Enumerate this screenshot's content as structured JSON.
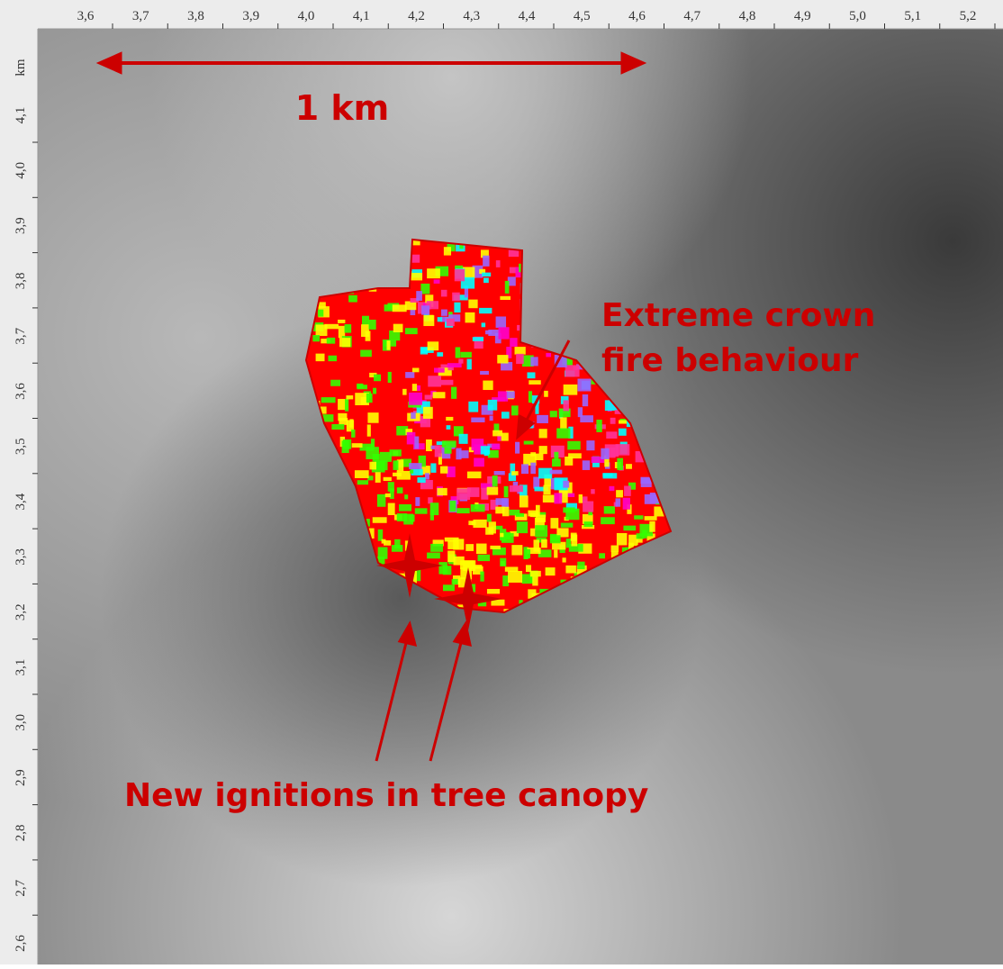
{
  "rulers": {
    "top": [
      "3,6",
      "3,7",
      "3,8",
      "3,9",
      "4,0",
      "4,1",
      "4,2",
      "4,3",
      "4,4",
      "4,5",
      "4,6",
      "4,7",
      "4,8",
      "4,9",
      "5,0",
      "5,1",
      "5,2"
    ],
    "left_unit": "km",
    "left": [
      "4,1",
      "4,0",
      "3,9",
      "3,8",
      "3,7",
      "3,6",
      "3,5",
      "3,4",
      "3,3",
      "3,2",
      "3,1",
      "3,0",
      "2,9",
      "2,8",
      "2,7",
      "2,6"
    ]
  },
  "annotations": {
    "scale": "1 km",
    "crown_fire": [
      "Extreme crown",
      "fire behaviour"
    ],
    "ignitions": "New ignitions in tree canopy"
  }
}
